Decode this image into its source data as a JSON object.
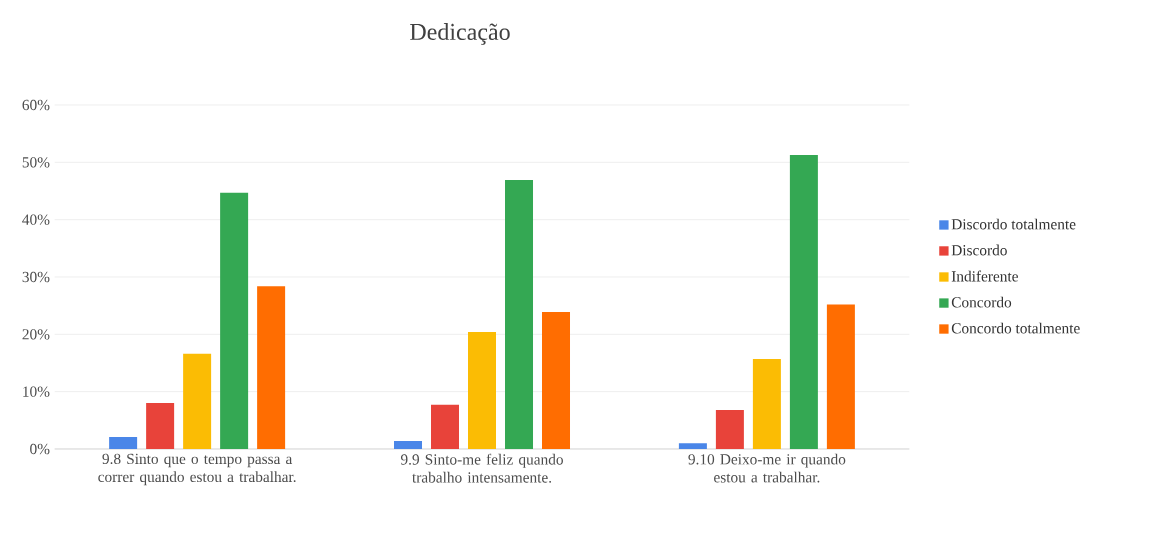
{
  "chart_data": {
    "type": "bar",
    "title": "Dedicação",
    "categories": [
      "9.8 Sinto que o tempo passa a correr quando estou a trabalhar.",
      "9.9 Sinto-me feliz quando trabalho intensamente.",
      "9.10 Deixo-me ir quando estou a trabalhar."
    ],
    "series": [
      {
        "name": "Discordo totalmente",
        "color": "#4a86e8",
        "values": [
          2.1,
          1.4,
          1.0
        ]
      },
      {
        "name": "Discordo",
        "color": "#e8433a",
        "values": [
          8.0,
          7.7,
          6.8
        ]
      },
      {
        "name": "Indiferente",
        "color": "#fbbc04",
        "values": [
          16.6,
          20.4,
          15.7
        ]
      },
      {
        "name": "Concordo",
        "color": "#34a853",
        "values": [
          44.7,
          46.9,
          51.3
        ]
      },
      {
        "name": "Concordo totalmente",
        "color": "#ff6d01",
        "values": [
          28.4,
          23.9,
          25.2
        ]
      }
    ],
    "ylim": [
      0,
      60
    ],
    "yticks": [
      {
        "value": 0,
        "label": "0%"
      },
      {
        "value": 10,
        "label": "10%"
      },
      {
        "value": 20,
        "label": "20%"
      },
      {
        "value": 30,
        "label": "30%"
      },
      {
        "value": 40,
        "label": "40%"
      },
      {
        "value": 50,
        "label": "50%"
      },
      {
        "value": 60,
        "label": "60%"
      }
    ],
    "grid": "y",
    "legend": "right"
  }
}
